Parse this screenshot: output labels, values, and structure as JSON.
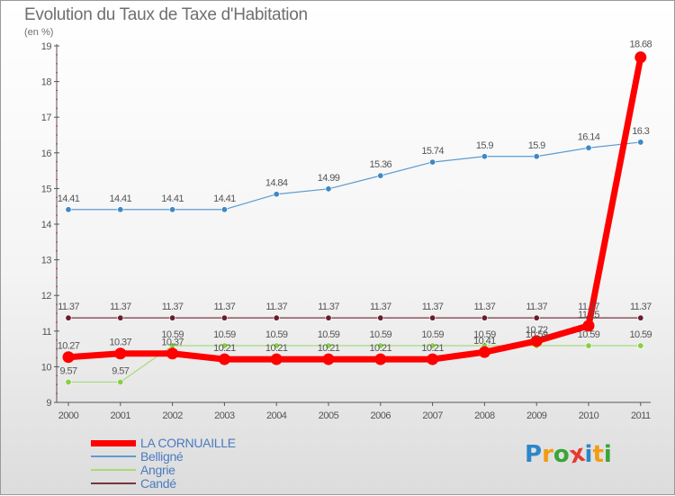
{
  "chart_data": {
    "type": "line",
    "title": "Evolution du Taux de Taxe d'Habitation",
    "subtitle": "(en %)",
    "xlabel": "",
    "ylabel": "",
    "ylim": [
      9,
      19
    ],
    "yticks": [
      9,
      10,
      11,
      12,
      13,
      14,
      15,
      16,
      17,
      18,
      19
    ],
    "x": [
      "2000",
      "2001",
      "2002",
      "2003",
      "2004",
      "2005",
      "2006",
      "2007",
      "2008",
      "2009",
      "2010",
      "2011"
    ],
    "grid": false,
    "legend_position": "bottom-left",
    "series": [
      {
        "name": "LA CORNUAILLE",
        "color": "#ff0000",
        "values": [
          10.27,
          10.37,
          10.37,
          10.21,
          10.21,
          10.21,
          10.21,
          10.21,
          10.41,
          10.72,
          11.15,
          18.68
        ],
        "labels": [
          "10.27",
          "10.37",
          "10.37",
          "10.21",
          "10.21",
          "10.21",
          "10.21",
          "10.21",
          "10.41",
          "10.72",
          "11.15",
          "18.68"
        ]
      },
      {
        "name": "Belligné",
        "color": "#4b90c9",
        "values": [
          14.41,
          14.41,
          14.41,
          14.41,
          14.84,
          14.99,
          15.36,
          15.74,
          15.9,
          15.9,
          16.14,
          16.3
        ],
        "labels": [
          "14.41",
          "14.41",
          "14.41",
          "14.41",
          "14.84",
          "14.99",
          "15.36",
          "15.74",
          "15.9",
          "15.9",
          "16.14",
          "16.3"
        ]
      },
      {
        "name": "Angrie",
        "color": "#8ed64e",
        "values": [
          9.57,
          9.57,
          10.59,
          10.59,
          10.59,
          10.59,
          10.59,
          10.59,
          10.59,
          10.59,
          10.59,
          10.59
        ],
        "labels": [
          "9.57",
          "9.57",
          "10.59",
          "10.59",
          "10.59",
          "10.59",
          "10.59",
          "10.59",
          "10.59",
          "10.59",
          "10.59",
          "10.59"
        ]
      },
      {
        "name": "Candé",
        "color": "#6b1d2b",
        "values": [
          11.37,
          11.37,
          11.37,
          11.37,
          11.37,
          11.37,
          11.37,
          11.37,
          11.37,
          11.37,
          11.37,
          11.37
        ],
        "labels": [
          "11.37",
          "11.37",
          "11.37",
          "11.37",
          "11.37",
          "11.37",
          "11.37",
          "11.37",
          "11.37",
          "11.37",
          "11.37",
          "11.37"
        ]
      }
    ]
  },
  "logo": {
    "letters": [
      "P",
      "r",
      "o",
      "x",
      "i",
      "t",
      "i"
    ],
    "colors": [
      "#2e86c8",
      "#f39c12",
      "#3aa537",
      "#e43a2f",
      "#2e86c8",
      "#f39c12",
      "#3aa537"
    ]
  }
}
